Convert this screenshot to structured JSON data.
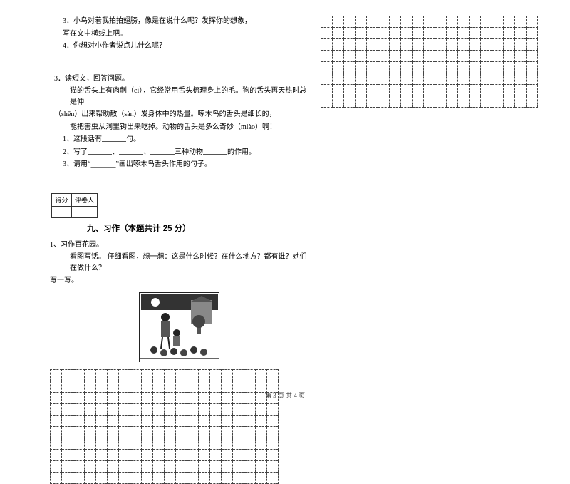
{
  "leftColumn": {
    "q3_line1": "3．小鸟对着我拍拍翅膀，像是在说什么呢？发挥你的想象，",
    "q3_line2": "写在文中横线上吧。",
    "q4": "4．你想对小作者说点儿什么呢？",
    "passage_title": "3．读短文，回答问题。",
    "passage_l1": "猫的舌头上有肉刺（cì），它经常用舌头梳理身上的毛。狗的舌头再天热时总是伸",
    "passage_l2": "（shēn）出来帮助散（sàn）发身体中的热量。啄木鸟的舌头是细长的，",
    "passage_l3": "能把害虫从洞里钩出来吃掉。动物的舌头是多么奇妙（miào）啊！",
    "pq1_a": "1、这段话有",
    "pq1_b": "句。",
    "pq2_a": "2、写了",
    "pq2_b": "、",
    "pq2_c": "、",
    "pq2_d": "三种动物",
    "pq2_e": "的作用。",
    "pq3": "3、请用“_______”画出啄木鸟舌头作用的句子。",
    "score_col1": "得分",
    "score_col2": "评卷人",
    "section_title": "九、习作（本题共计 25 分）",
    "writing_q": "1、习作百花园。",
    "writing_instr": "看图写话。 仔细看图，想一想：这是什么时候？在什么地方？都有谁？她们在做什么？",
    "writing_instr2": "写一写。",
    "grid_left": {
      "rows": 10,
      "cols": 20
    }
  },
  "rightColumn": {
    "grid_right": {
      "rows": 8,
      "cols": 19
    }
  },
  "footer": {
    "text": "第 3 页  共 4 页"
  },
  "style": {
    "bg": "#ffffff",
    "text_color": "#000000",
    "grid_border": "#444444",
    "font_body": 10,
    "font_title": 11.5
  },
  "illustration": {
    "alt": "mother-and-child-flowers-scene"
  }
}
